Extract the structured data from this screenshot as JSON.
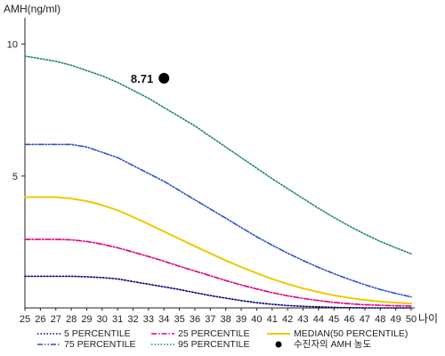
{
  "chart_data": {
    "type": "line",
    "ylabel": "AMH(ng/ml)",
    "xlabel": "나이",
    "xlim": [
      25,
      50
    ],
    "ylim": [
      0,
      11
    ],
    "xticks": [
      25,
      26,
      27,
      28,
      29,
      30,
      31,
      32,
      33,
      34,
      35,
      36,
      37,
      38,
      39,
      40,
      41,
      42,
      43,
      44,
      45,
      46,
      47,
      48,
      49,
      50
    ],
    "yticks": [
      5,
      10
    ],
    "grid": false,
    "legend_placement": "bottom",
    "series": [
      {
        "name": "5 PERCENTILE",
        "color": "#000080",
        "dash": "dotted",
        "x": [
          25,
          26,
          27,
          28,
          29,
          30,
          31,
          32,
          33,
          34,
          35,
          36,
          37,
          38,
          39,
          40,
          41,
          42,
          43,
          44,
          45,
          46,
          47,
          48,
          49,
          50
        ],
        "values": [
          1.2,
          1.2,
          1.2,
          1.2,
          1.18,
          1.15,
          1.1,
          1.0,
          0.9,
          0.8,
          0.7,
          0.58,
          0.47,
          0.37,
          0.28,
          0.2,
          0.14,
          0.09,
          0.06,
          0.04,
          0.02,
          0.01,
          0.0,
          0.0,
          0.0,
          0.0
        ]
      },
      {
        "name": "25 PERCENTILE",
        "color": "#e0007a",
        "dash": "dashdot",
        "x": [
          25,
          26,
          27,
          28,
          29,
          30,
          31,
          32,
          33,
          34,
          35,
          36,
          37,
          38,
          39,
          40,
          41,
          42,
          43,
          44,
          45,
          46,
          47,
          48,
          49,
          50
        ],
        "values": [
          2.6,
          2.6,
          2.6,
          2.58,
          2.52,
          2.42,
          2.28,
          2.12,
          1.95,
          1.77,
          1.58,
          1.4,
          1.22,
          1.04,
          0.87,
          0.72,
          0.58,
          0.46,
          0.36,
          0.28,
          0.21,
          0.16,
          0.12,
          0.1,
          0.08,
          0.07
        ]
      },
      {
        "name": "MEDIAN(50 PERCENTILE)",
        "color": "#f0c800",
        "dash": "solid",
        "x": [
          25,
          26,
          27,
          28,
          29,
          30,
          31,
          32,
          33,
          34,
          35,
          36,
          37,
          38,
          39,
          40,
          41,
          42,
          43,
          44,
          45,
          46,
          47,
          48,
          49,
          50
        ],
        "values": [
          4.2,
          4.2,
          4.2,
          4.15,
          4.05,
          3.9,
          3.7,
          3.45,
          3.18,
          2.9,
          2.62,
          2.34,
          2.07,
          1.8,
          1.55,
          1.32,
          1.1,
          0.91,
          0.74,
          0.6,
          0.48,
          0.38,
          0.3,
          0.24,
          0.2,
          0.17
        ]
      },
      {
        "name": "75 PERCENTILE",
        "color": "#2e4fc8",
        "dash": "dashdotdot",
        "x": [
          25,
          26,
          27,
          28,
          29,
          30,
          31,
          32,
          33,
          34,
          35,
          36,
          37,
          38,
          39,
          40,
          41,
          42,
          43,
          44,
          45,
          46,
          47,
          48,
          49,
          50
        ],
        "values": [
          6.2,
          6.2,
          6.2,
          6.2,
          6.1,
          5.9,
          5.7,
          5.4,
          5.1,
          4.8,
          4.45,
          4.1,
          3.75,
          3.4,
          3.05,
          2.7,
          2.38,
          2.08,
          1.8,
          1.54,
          1.3,
          1.08,
          0.88,
          0.7,
          0.55,
          0.42
        ]
      },
      {
        "name": "95 PERCENTILE",
        "color": "#1f8a5b",
        "dash": "dotted",
        "x": [
          25,
          26,
          27,
          28,
          29,
          30,
          31,
          32,
          33,
          34,
          35,
          36,
          37,
          38,
          39,
          40,
          41,
          42,
          43,
          44,
          45,
          46,
          47,
          48,
          49,
          50
        ],
        "values": [
          9.55,
          9.45,
          9.35,
          9.2,
          9.0,
          8.8,
          8.55,
          8.25,
          7.95,
          7.6,
          7.25,
          6.9,
          6.5,
          6.1,
          5.7,
          5.3,
          4.9,
          4.52,
          4.15,
          3.78,
          3.43,
          3.1,
          2.8,
          2.52,
          2.28,
          2.05
        ]
      }
    ],
    "marker": {
      "name": "수진자의 AMH 농도",
      "x": 34,
      "y": 8.71,
      "label": "8.71",
      "color": "#000000"
    }
  }
}
